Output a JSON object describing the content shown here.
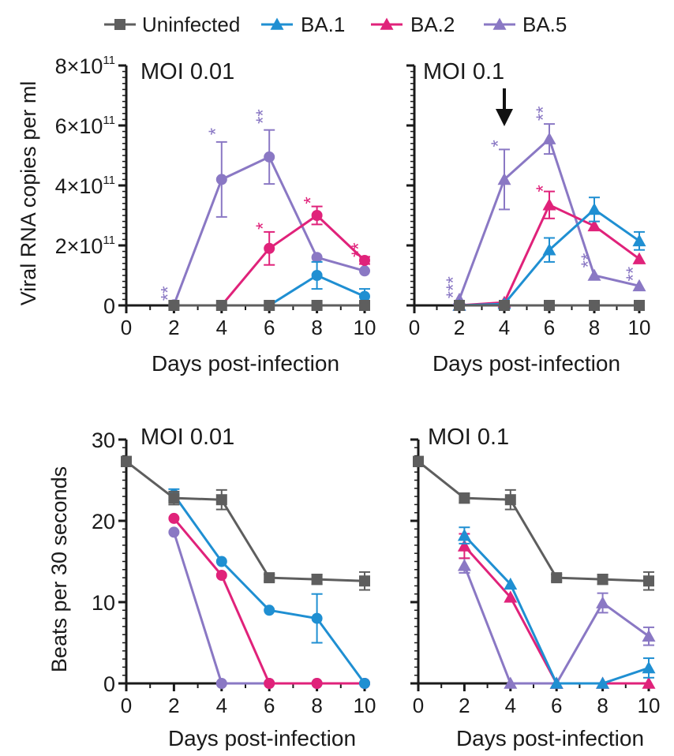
{
  "legend": [
    {
      "label": "Uninfected",
      "color": "#5e5e5e",
      "marker": "square"
    },
    {
      "label": "BA.1",
      "color": "#1f8fd2",
      "marker": "triangle"
    },
    {
      "label": "BA.2",
      "color": "#e0227a",
      "marker": "triangle"
    },
    {
      "label": "BA.5",
      "color": "#8a78c4",
      "marker": "triangle"
    }
  ],
  "chart_data": [
    {
      "type": "line",
      "panel_title": "MOI 0.01",
      "ylabel": "Viral RNA copies per ml",
      "xlabel": "Days post-infection",
      "x": [
        0,
        2,
        4,
        6,
        8,
        10
      ],
      "xlim": [
        0,
        10
      ],
      "ylim": [
        0,
        800000000000.0
      ],
      "ytick_labels": [
        {
          "base": "0",
          "exp": ""
        },
        {
          "base": "2×10",
          "exp": "11"
        },
        {
          "base": "4×10",
          "exp": "11"
        },
        {
          "base": "6×10",
          "exp": "11"
        },
        {
          "base": "8×10",
          "exp": "11"
        }
      ],
      "marker": "circle",
      "series": [
        {
          "name": "Uninfected",
          "color": "#5e5e5e",
          "marker": "square",
          "x": [
            2,
            4,
            6,
            8,
            10
          ],
          "values": [
            0,
            0,
            0,
            0,
            0
          ],
          "errors": [
            0,
            0,
            0,
            0,
            0
          ]
        },
        {
          "name": "BA.1",
          "color": "#1f8fd2",
          "x": [
            2,
            4,
            6,
            8,
            10
          ],
          "values": [
            0,
            0,
            0,
            100000000000.0,
            30000000000.0
          ],
          "errors": [
            0,
            0,
            0,
            45000000000.0,
            25000000000.0
          ]
        },
        {
          "name": "BA.2",
          "color": "#e0227a",
          "x": [
            2,
            4,
            6,
            8,
            10
          ],
          "values": [
            0,
            0,
            190000000000.0,
            300000000000.0,
            150000000000.0
          ],
          "errors": [
            0,
            0,
            55000000000.0,
            30000000000.0,
            12000000000.0
          ]
        },
        {
          "name": "BA.5",
          "color": "#8a78c4",
          "x": [
            2,
            4,
            6,
            8,
            10
          ],
          "values": [
            2000000000.0,
            420000000000.0,
            495000000000.0,
            160000000000.0,
            115000000000.0
          ],
          "errors": [
            0,
            125000000000.0,
            90000000000.0,
            0,
            0
          ]
        }
      ],
      "annotations": [
        {
          "x": 2,
          "y": 40000000000.0,
          "text": "**",
          "color": "#8a78c4"
        },
        {
          "x": 4,
          "y": 580000000000.0,
          "text": "*",
          "color": "#8a78c4"
        },
        {
          "x": 6,
          "y": 630000000000.0,
          "text": "**",
          "color": "#8a78c4"
        },
        {
          "x": 6,
          "y": 265000000000.0,
          "text": "*",
          "color": "#e0227a"
        },
        {
          "x": 8,
          "y": 350000000000.0,
          "text": "*",
          "color": "#e0227a"
        },
        {
          "x": 10,
          "y": 185000000000.0,
          "text": "**",
          "color": "#e0227a"
        }
      ]
    },
    {
      "type": "line",
      "panel_title": "MOI 0.1",
      "ylabel": "",
      "xlabel": "Days post-infection",
      "x": [
        0,
        2,
        4,
        6,
        8,
        10
      ],
      "xlim": [
        0,
        10
      ],
      "ylim": [
        0,
        800000000000.0
      ],
      "ytick_labels": [],
      "marker": "triangle",
      "arrow_at_x": 4,
      "series": [
        {
          "name": "Uninfected",
          "color": "#5e5e5e",
          "marker": "square",
          "x": [
            2,
            4,
            6,
            8,
            10
          ],
          "values": [
            0,
            0,
            0,
            0,
            0
          ],
          "errors": [
            0,
            0,
            0,
            0,
            0
          ]
        },
        {
          "name": "BA.1",
          "color": "#1f8fd2",
          "x": [
            2,
            4,
            6,
            8,
            10
          ],
          "values": [
            0,
            5000000000.0,
            185000000000.0,
            320000000000.0,
            215000000000.0
          ],
          "errors": [
            0,
            0,
            40000000000.0,
            40000000000.0,
            30000000000.0
          ]
        },
        {
          "name": "BA.2",
          "color": "#e0227a",
          "x": [
            2,
            4,
            6,
            8,
            10
          ],
          "values": [
            0,
            10000000000.0,
            335000000000.0,
            265000000000.0,
            155000000000.0
          ],
          "errors": [
            0,
            0,
            45000000000.0,
            0,
            0
          ]
        },
        {
          "name": "BA.5",
          "color": "#8a78c4",
          "x": [
            2,
            4,
            6,
            8,
            10
          ],
          "values": [
            20000000000.0,
            420000000000.0,
            555000000000.0,
            100000000000.0,
            65000000000.0
          ],
          "errors": [
            0,
            100000000000.0,
            50000000000.0,
            0,
            0
          ]
        }
      ],
      "annotations": [
        {
          "x": 2,
          "y": 60000000000.0,
          "text": "***",
          "color": "#8a78c4"
        },
        {
          "x": 4,
          "y": 540000000000.0,
          "text": "*",
          "color": "#8a78c4"
        },
        {
          "x": 6,
          "y": 640000000000.0,
          "text": "**",
          "color": "#8a78c4"
        },
        {
          "x": 6,
          "y": 390000000000.0,
          "text": "*",
          "color": "#e0227a"
        },
        {
          "x": 8,
          "y": 150000000000.0,
          "text": "**",
          "color": "#8a78c4"
        },
        {
          "x": 10,
          "y": 105000000000.0,
          "text": "**",
          "color": "#8a78c4"
        }
      ]
    },
    {
      "type": "line",
      "panel_title": "MOI 0.01",
      "ylabel": "Beats per 30 seconds",
      "xlabel": "Days post-infection",
      "x": [
        0,
        2,
        4,
        6,
        8,
        10
      ],
      "xlim": [
        0,
        10
      ],
      "ylim": [
        0,
        30
      ],
      "ytick_labels": [
        {
          "base": "0",
          "exp": ""
        },
        {
          "base": "10",
          "exp": ""
        },
        {
          "base": "20",
          "exp": ""
        },
        {
          "base": "30",
          "exp": ""
        }
      ],
      "marker": "circle",
      "series": [
        {
          "name": "Uninfected",
          "color": "#5e5e5e",
          "marker": "square",
          "x": [
            0,
            2,
            4,
            6,
            8,
            10
          ],
          "values": [
            27.3,
            22.8,
            22.6,
            13.0,
            12.8,
            12.6
          ],
          "errors": [
            0.6,
            0.8,
            1.2,
            0.4,
            0.6,
            1.1
          ]
        },
        {
          "name": "BA.1",
          "color": "#1f8fd2",
          "x": [
            2,
            4,
            6,
            8,
            10
          ],
          "values": [
            23.2,
            15.0,
            9.0,
            8.0,
            0
          ],
          "errors": [
            0.7,
            0,
            0,
            3.0,
            0
          ]
        },
        {
          "name": "BA.2",
          "color": "#e0227a",
          "x": [
            2,
            4,
            6,
            8,
            10
          ],
          "values": [
            20.3,
            13.3,
            0,
            0,
            0
          ],
          "errors": [
            0,
            0,
            0,
            0,
            0
          ]
        },
        {
          "name": "BA.5",
          "color": "#8a78c4",
          "x": [
            2,
            4,
            6,
            8,
            10
          ],
          "values": [
            18.6,
            0,
            0,
            0,
            0
          ],
          "errors": [
            0,
            0,
            0,
            0,
            0
          ]
        }
      ],
      "annotations": []
    },
    {
      "type": "line",
      "panel_title": "MOI 0.1",
      "ylabel": "",
      "xlabel": "Days post-infection",
      "x": [
        0,
        2,
        4,
        6,
        8,
        10
      ],
      "xlim": [
        0,
        10
      ],
      "ylim": [
        0,
        30
      ],
      "ytick_labels": [],
      "marker": "triangle",
      "series": [
        {
          "name": "Uninfected",
          "color": "#5e5e5e",
          "marker": "square",
          "x": [
            0,
            2,
            4,
            6,
            8,
            10
          ],
          "values": [
            27.3,
            22.8,
            22.6,
            13.0,
            12.8,
            12.6
          ],
          "errors": [
            0.6,
            0.6,
            1.2,
            0.4,
            0.6,
            1.1
          ]
        },
        {
          "name": "BA.1",
          "color": "#1f8fd2",
          "x": [
            2,
            4,
            6,
            8,
            10
          ],
          "values": [
            18.2,
            12.2,
            0,
            0,
            1.9
          ],
          "errors": [
            1.0,
            0,
            0,
            0,
            1.2
          ]
        },
        {
          "name": "BA.2",
          "color": "#e0227a",
          "x": [
            2,
            4,
            6,
            8,
            10
          ],
          "values": [
            16.9,
            10.6,
            0,
            0,
            0
          ],
          "errors": [
            1.5,
            0,
            0,
            0,
            0
          ]
        },
        {
          "name": "BA.5",
          "color": "#8a78c4",
          "x": [
            2,
            4,
            6,
            8,
            10
          ],
          "values": [
            14.5,
            0,
            0,
            9.9,
            5.8
          ],
          "errors": [
            0.9,
            0,
            0,
            1.2,
            1.1
          ]
        }
      ],
      "annotations": []
    }
  ]
}
